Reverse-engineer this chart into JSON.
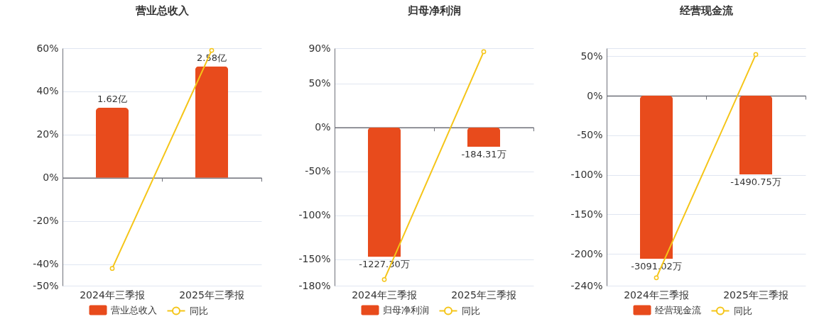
{
  "chart_data": [
    {
      "type": "bar",
      "title": "营业总收入",
      "categories": [
        "2024年三季报",
        "2025年三季报"
      ],
      "series": [
        {
          "name": "营业总收入",
          "axis": "y2",
          "color": "#e84b1c",
          "values": [
            1.62,
            2.58
          ],
          "value_labels": [
            "1.62亿",
            "2.58亿"
          ]
        },
        {
          "name": "同比",
          "type": "line",
          "color": "#f5c518",
          "values": [
            -42,
            59
          ]
        }
      ],
      "ylim": [
        -50,
        60
      ],
      "yticks": [
        {
          "value": -50,
          "label": "-50%"
        },
        {
          "value": -40,
          "label": "-40%"
        },
        {
          "value": -20,
          "label": "-20%"
        },
        {
          "value": 0,
          "label": "0%"
        },
        {
          "value": 20,
          "label": "20%"
        },
        {
          "value": 40,
          "label": "40%"
        },
        {
          "value": 60,
          "label": "60%"
        }
      ],
      "y2lim": [
        -2.5,
        3
      ],
      "grid": "y",
      "legend": "bottom",
      "marker": "circle",
      "line_style": "solid"
    },
    {
      "type": "bar",
      "title": "归母净利润",
      "categories": [
        "2024年三季报",
        "2025年三季报"
      ],
      "series": [
        {
          "name": "归母净利润",
          "axis": "y2",
          "color": "#e84b1c",
          "values": [
            -1227.3,
            -184.31
          ],
          "value_labels": [
            "-1227.30万",
            "-184.31万"
          ]
        },
        {
          "name": "同比",
          "type": "line",
          "color": "#f5c518",
          "values": [
            -173,
            86
          ]
        }
      ],
      "ylim": [
        -180,
        90
      ],
      "yticks": [
        {
          "value": -180,
          "label": "-180%"
        },
        {
          "value": -150,
          "label": "-150%"
        },
        {
          "value": -100,
          "label": "-100%"
        },
        {
          "value": -50,
          "label": "-50%"
        },
        {
          "value": 0,
          "label": "0%"
        },
        {
          "value": 50,
          "label": "50%"
        },
        {
          "value": 90,
          "label": "90%"
        }
      ],
      "y2lim": [
        -1500,
        750
      ],
      "grid": "y",
      "legend": "bottom",
      "marker": "circle",
      "line_style": "solid"
    },
    {
      "type": "bar",
      "title": "经营现金流",
      "categories": [
        "2024年三季报",
        "2025年三季报"
      ],
      "series": [
        {
          "name": "经营现金流",
          "axis": "y2",
          "color": "#e84b1c",
          "values": [
            -3091.02,
            -1490.75
          ],
          "value_labels": [
            "-3091.02万",
            "-1490.75万"
          ]
        },
        {
          "name": "同比",
          "type": "line",
          "color": "#f5c518",
          "values": [
            -230,
            52
          ]
        }
      ],
      "ylim": [
        -240,
        60
      ],
      "yticks": [
        {
          "value": -240,
          "label": "-240%"
        },
        {
          "value": -200,
          "label": "-200%"
        },
        {
          "value": -150,
          "label": "-150%"
        },
        {
          "value": -100,
          "label": "-100%"
        },
        {
          "value": -50,
          "label": "-50%"
        },
        {
          "value": 0,
          "label": "0%"
        },
        {
          "value": 50,
          "label": "50%"
        },
        {
          "value": 60,
          "label": null
        }
      ],
      "y2lim": [
        -3600,
        900
      ],
      "grid": "y",
      "legend": "bottom",
      "marker": "circle",
      "line_style": "solid"
    }
  ]
}
